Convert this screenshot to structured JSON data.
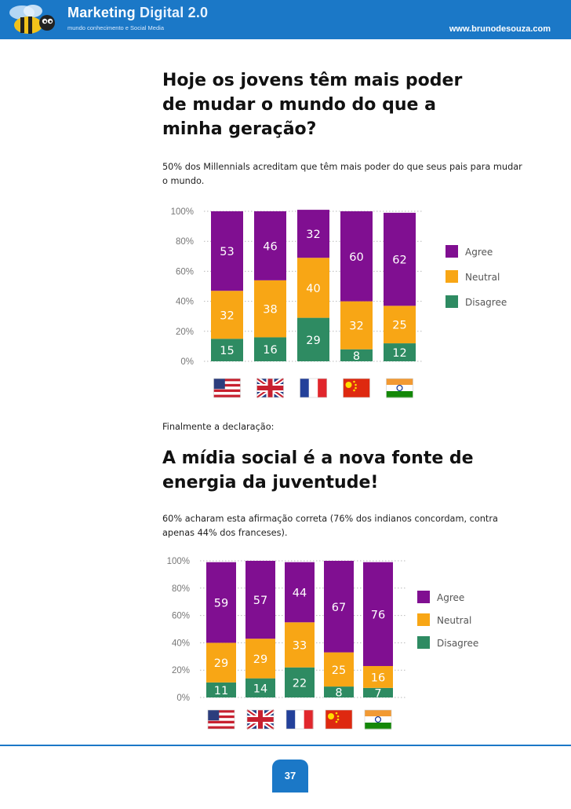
{
  "header": {
    "brand_main": "Marketing",
    "brand_accent": "Digital 2.0",
    "tagline": "mundo conhecimento e Social Media",
    "site_url": "www.brunodesouza.com"
  },
  "section1": {
    "heading": "Hoje os jovens têm mais poder de mudar o mundo do que a minha geração?",
    "body": "50% dos Millennials acreditam que têm mais poder do que seus pais para mudar o mundo."
  },
  "transition_text": "Finalmente a declaração:",
  "section2": {
    "heading": "A mídia social é a nova fonte de energia da juventude!",
    "body": "60% acharam esta afirmação correta (76% dos indianos concordam, contra apenas 44% dos franceses)."
  },
  "page_number": "37",
  "colors": {
    "agree": "#800f91",
    "neutral": "#f8a615",
    "disagree": "#2e8b62",
    "brand": "#1b78c7"
  },
  "chart_data": [
    {
      "type": "bar",
      "stacked": true,
      "categories": [
        "USA",
        "UK",
        "France",
        "China",
        "India"
      ],
      "flags": [
        "flag-usa",
        "flag-uk",
        "flag-france",
        "flag-china",
        "flag-india"
      ],
      "y_ticks": [
        "100%",
        "80%",
        "60%",
        "40%",
        "20%",
        "0%"
      ],
      "ylim": [
        0,
        100
      ],
      "legend_position": "right",
      "series": [
        {
          "name": "Agree",
          "values": [
            53,
            46,
            32,
            60,
            62
          ]
        },
        {
          "name": "Neutral",
          "values": [
            32,
            38,
            40,
            32,
            25
          ]
        },
        {
          "name": "Disagree",
          "values": [
            15,
            16,
            29,
            8,
            12
          ]
        }
      ]
    },
    {
      "type": "bar",
      "stacked": true,
      "categories": [
        "USA",
        "UK",
        "France",
        "China",
        "India"
      ],
      "flags": [
        "flag-usa",
        "flag-uk",
        "flag-france",
        "flag-china",
        "flag-india"
      ],
      "y_ticks": [
        "100%",
        "80%",
        "60%",
        "40%",
        "20%",
        "0%"
      ],
      "ylim": [
        0,
        100
      ],
      "legend_position": "right",
      "series": [
        {
          "name": "Agree",
          "values": [
            59,
            57,
            44,
            67,
            76
          ]
        },
        {
          "name": "Neutral",
          "values": [
            29,
            29,
            33,
            25,
            16
          ]
        },
        {
          "name": "Disagree",
          "values": [
            11,
            14,
            22,
            8,
            7
          ]
        }
      ]
    }
  ]
}
